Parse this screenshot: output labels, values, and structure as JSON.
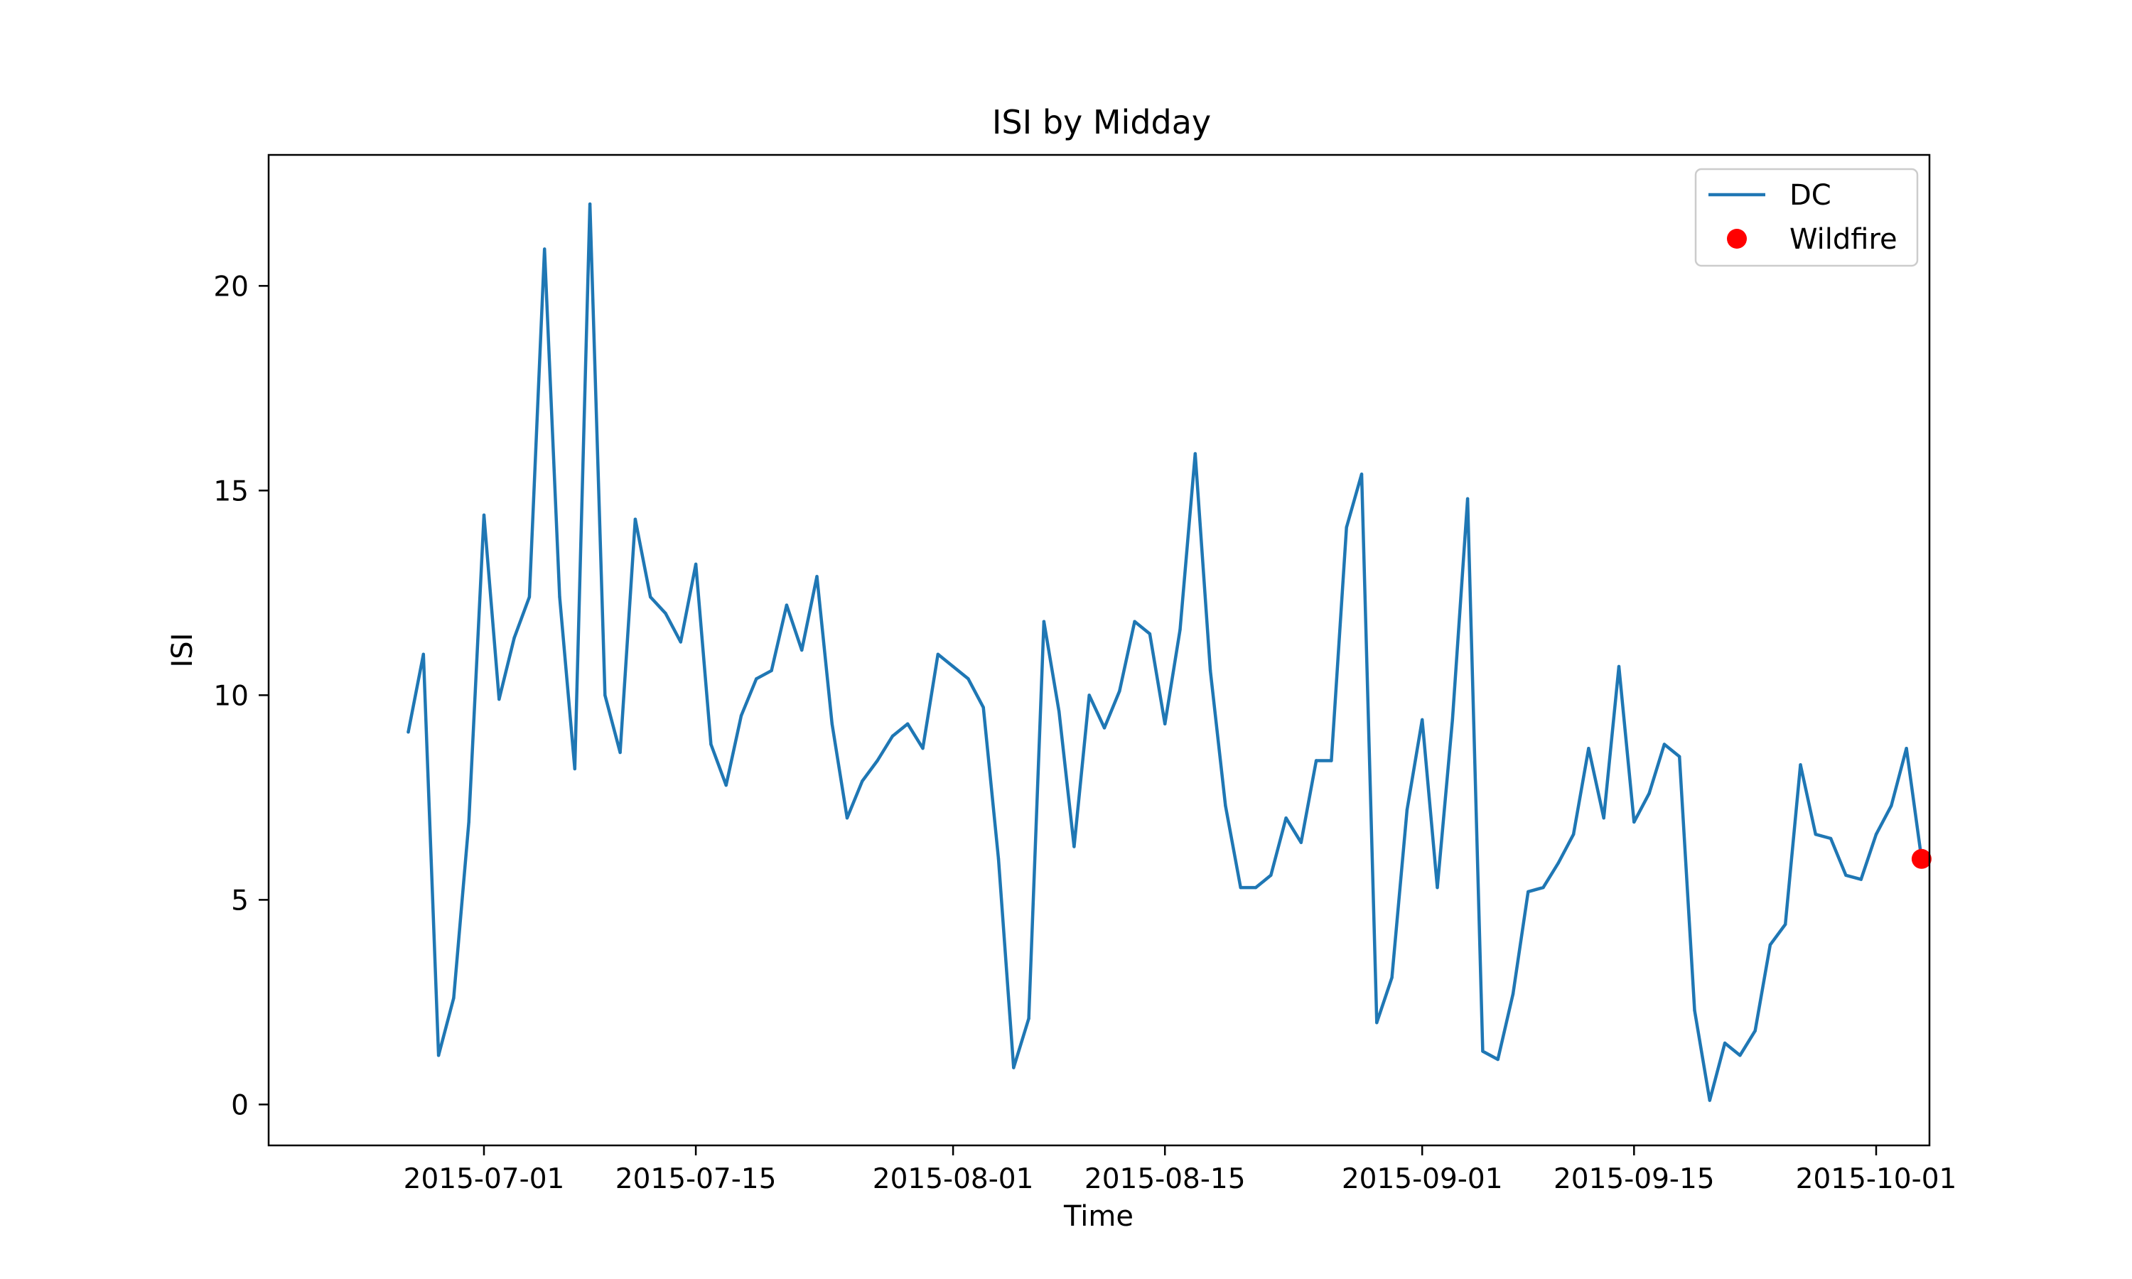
{
  "chart_data": {
    "type": "line",
    "title": "ISI by Midday",
    "xlabel": "Time",
    "ylabel": "ISI",
    "x_ticks": [
      "2015-07-01",
      "2015-07-15",
      "2015-08-01",
      "2015-08-15",
      "2015-09-01",
      "2015-09-15",
      "2015-10-01"
    ],
    "y_ticks": [
      0,
      5,
      10,
      15,
      20
    ],
    "xlim": [
      "2015-06-21",
      "2015-10-01"
    ],
    "ylim": [
      -1.0,
      23.2
    ],
    "grid": false,
    "legend_position": "top-right",
    "series": [
      {
        "name": "DC",
        "type": "line",
        "color": "#1f77b4",
        "points": [
          [
            "2015-06-26",
            9.1
          ],
          [
            "2015-06-27",
            11.0
          ],
          [
            "2015-06-28",
            1.2
          ],
          [
            "2015-06-29",
            2.6
          ],
          [
            "2015-06-30",
            6.9
          ],
          [
            "2015-07-01",
            14.4
          ],
          [
            "2015-07-02",
            9.9
          ],
          [
            "2015-07-03",
            11.4
          ],
          [
            "2015-07-04",
            12.4
          ],
          [
            "2015-07-05",
            20.9
          ],
          [
            "2015-07-06",
            12.4
          ],
          [
            "2015-07-07",
            8.2
          ],
          [
            "2015-07-08",
            22.0
          ],
          [
            "2015-07-09",
            10.0
          ],
          [
            "2015-07-10",
            8.6
          ],
          [
            "2015-07-11",
            14.3
          ],
          [
            "2015-07-12",
            12.4
          ],
          [
            "2015-07-13",
            12.0
          ],
          [
            "2015-07-14",
            11.3
          ],
          [
            "2015-07-15",
            13.2
          ],
          [
            "2015-07-16",
            8.8
          ],
          [
            "2015-07-17",
            7.8
          ],
          [
            "2015-07-18",
            9.5
          ],
          [
            "2015-07-19",
            10.4
          ],
          [
            "2015-07-20",
            10.6
          ],
          [
            "2015-07-21",
            12.2
          ],
          [
            "2015-07-22",
            11.1
          ],
          [
            "2015-07-23",
            12.9
          ],
          [
            "2015-07-24",
            9.3
          ],
          [
            "2015-07-25",
            7.0
          ],
          [
            "2015-07-26",
            7.9
          ],
          [
            "2015-07-27",
            8.4
          ],
          [
            "2015-07-28",
            9.0
          ],
          [
            "2015-07-29",
            9.3
          ],
          [
            "2015-07-30",
            8.7
          ],
          [
            "2015-07-31",
            11.0
          ],
          [
            "2015-08-01",
            10.7
          ],
          [
            "2015-08-02",
            10.4
          ],
          [
            "2015-08-03",
            9.7
          ],
          [
            "2015-08-04",
            6.0
          ],
          [
            "2015-08-05",
            0.9
          ],
          [
            "2015-08-06",
            2.1
          ],
          [
            "2015-08-07",
            11.8
          ],
          [
            "2015-08-08",
            9.6
          ],
          [
            "2015-08-09",
            6.3
          ],
          [
            "2015-08-10",
            10.0
          ],
          [
            "2015-08-11",
            9.2
          ],
          [
            "2015-08-12",
            10.1
          ],
          [
            "2015-08-13",
            11.8
          ],
          [
            "2015-08-14",
            11.5
          ],
          [
            "2015-08-15",
            9.3
          ],
          [
            "2015-08-16",
            11.6
          ],
          [
            "2015-08-17",
            15.9
          ],
          [
            "2015-08-18",
            10.6
          ],
          [
            "2015-08-19",
            7.3
          ],
          [
            "2015-08-20",
            5.3
          ],
          [
            "2015-08-21",
            5.3
          ],
          [
            "2015-08-22",
            5.6
          ],
          [
            "2015-08-23",
            7.0
          ],
          [
            "2015-08-24",
            6.4
          ],
          [
            "2015-08-25",
            8.4
          ],
          [
            "2015-08-26",
            8.4
          ],
          [
            "2015-08-27",
            14.1
          ],
          [
            "2015-08-28",
            15.4
          ],
          [
            "2015-08-29",
            2.0
          ],
          [
            "2015-08-30",
            3.1
          ],
          [
            "2015-08-31",
            7.2
          ],
          [
            "2015-09-01",
            9.4
          ],
          [
            "2015-09-02",
            5.3
          ],
          [
            "2015-09-03",
            9.4
          ],
          [
            "2015-09-04",
            14.8
          ],
          [
            "2015-09-05",
            1.3
          ],
          [
            "2015-09-06",
            1.1
          ],
          [
            "2015-09-07",
            2.7
          ],
          [
            "2015-09-08",
            5.2
          ],
          [
            "2015-09-09",
            5.3
          ],
          [
            "2015-09-10",
            5.9
          ],
          [
            "2015-09-11",
            6.6
          ],
          [
            "2015-09-12",
            8.7
          ],
          [
            "2015-09-13",
            7.0
          ],
          [
            "2015-09-14",
            10.7
          ],
          [
            "2015-09-15",
            6.9
          ],
          [
            "2015-09-16",
            7.6
          ],
          [
            "2015-09-17",
            8.8
          ],
          [
            "2015-09-18",
            8.5
          ],
          [
            "2015-09-19",
            2.3
          ],
          [
            "2015-09-20",
            0.1
          ],
          [
            "2015-09-21",
            1.5
          ],
          [
            "2015-09-22",
            1.2
          ],
          [
            "2015-09-23",
            1.8
          ],
          [
            "2015-09-24",
            3.9
          ],
          [
            "2015-09-25",
            4.4
          ],
          [
            "2015-09-26",
            8.3
          ],
          [
            "2015-09-27",
            6.6
          ],
          [
            "2015-09-28",
            6.5
          ],
          [
            "2015-09-29",
            5.6
          ],
          [
            "2015-09-30",
            5.5
          ],
          [
            "2015-10-01",
            6.6
          ],
          [
            "2015-10-02",
            7.3
          ],
          [
            "2015-10-03",
            8.7
          ],
          [
            "2015-10-04",
            6.0
          ]
        ]
      },
      {
        "name": "Wildfire",
        "type": "scatter",
        "color": "#ff0000",
        "points": [
          [
            "2015-10-04",
            6.0
          ]
        ]
      }
    ]
  }
}
